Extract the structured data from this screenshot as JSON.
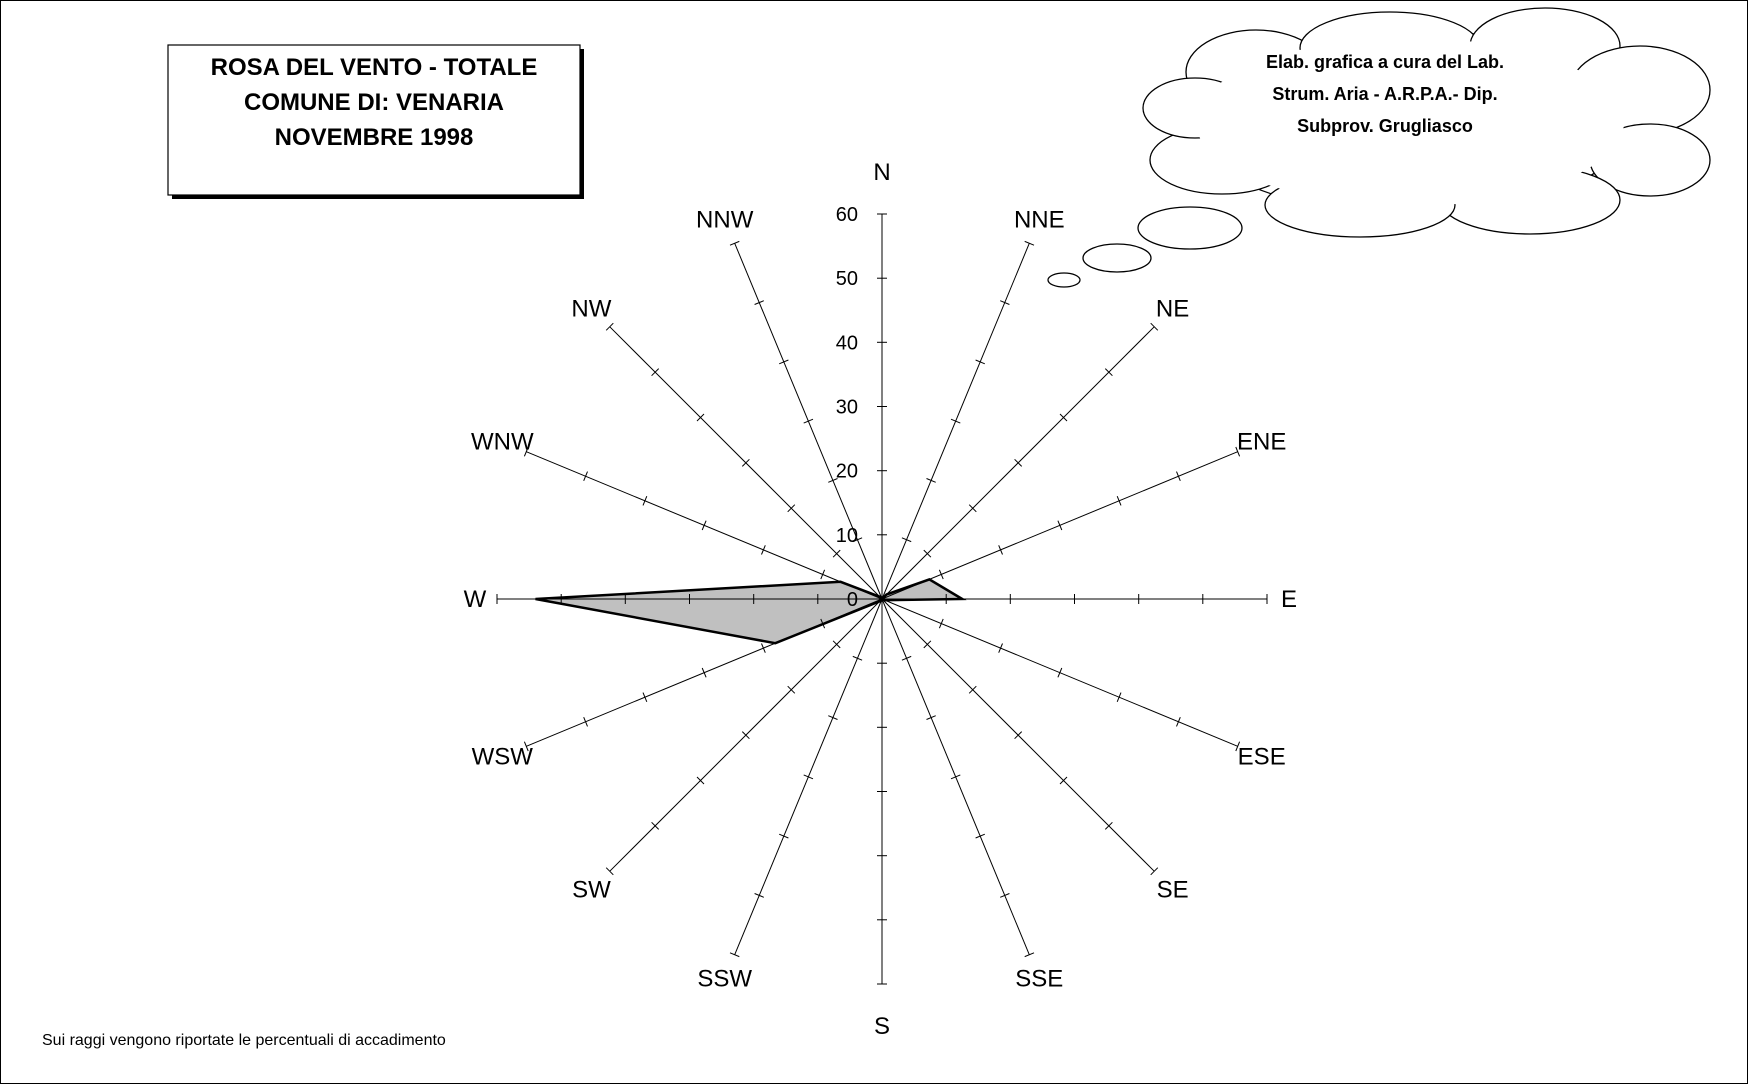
{
  "chart_data": {
    "type": "radar",
    "title": [
      "ROSA DEL VENTO - TOTALE",
      "COMUNE DI: VENARIA",
      "NOVEMBRE 1998"
    ],
    "credit": [
      "Elab. grafica a cura del Lab.",
      "Strum. Aria - A.R.P.A.- Dip.",
      "Subprov. Grugliasco"
    ],
    "footnote": "Sui raggi vengono riportate le percentuali di accadimento",
    "directions": [
      "N",
      "NNE",
      "NE",
      "ENE",
      "E",
      "ESE",
      "SE",
      "SSE",
      "S",
      "SSW",
      "SW",
      "WSW",
      "W",
      "WNW",
      "NW",
      "NNW"
    ],
    "r_ticks": [
      "0",
      "10",
      "20",
      "30",
      "40",
      "50",
      "60"
    ],
    "rlim": [
      0,
      60
    ],
    "tick_step": 10,
    "values": [
      0,
      0,
      1,
      8,
      12.5,
      0.5,
      0,
      0,
      0,
      0,
      0.5,
      18,
      54,
      7,
      0.5,
      0
    ],
    "fill_color": "#c0c0c0",
    "grid": false
  }
}
